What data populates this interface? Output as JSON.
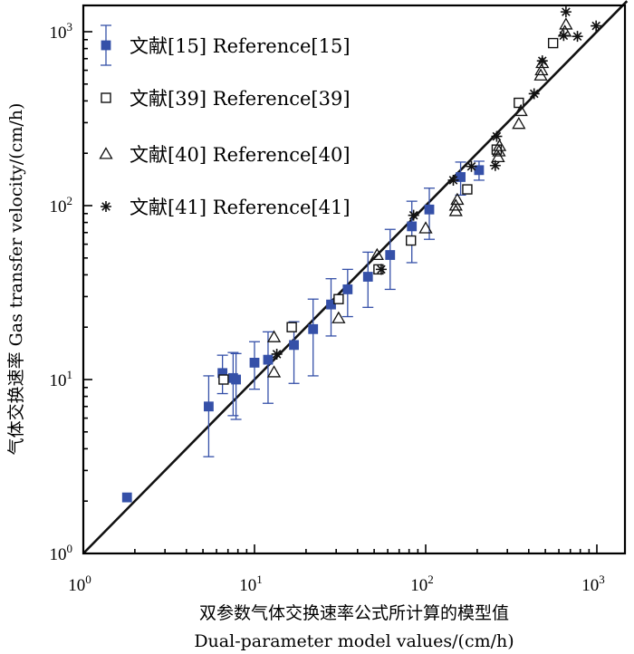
{
  "chart_data": {
    "type": "scatter",
    "title": "",
    "xscale": "log",
    "yscale": "log",
    "xlim": [
      1,
      1500
    ],
    "ylim": [
      1,
      1500
    ],
    "xlabel_cn": "双参数气体交换速率公式所计算的模型值",
    "xlabel_en": "Dual-parameter model values/(cm/h)",
    "ylabel": "气体交换速率 Gas transfer velocity/(cm/h)",
    "ticks": [
      {
        "value": 1,
        "base": "10",
        "exp": "0"
      },
      {
        "value": 10,
        "base": "10",
        "exp": "1"
      },
      {
        "value": 100,
        "base": "10",
        "exp": "2"
      },
      {
        "value": 1000,
        "base": "10",
        "exp": "3"
      }
    ],
    "reference_line": {
      "type": "y=x"
    },
    "legend_position": "top-left",
    "colors": {
      "blue": "#3550a8",
      "black": "#111111"
    },
    "series": [
      {
        "name": "文献[15] Reference[15]",
        "marker": "filled-square",
        "has_error_bars": true,
        "points": [
          {
            "x": 1.8,
            "y": 2.1
          },
          {
            "x": 5.4,
            "y": 7.0,
            "lo": 3.6,
            "hi": 10.5
          },
          {
            "x": 6.5,
            "y": 10.9,
            "lo": 8.3,
            "hi": 13.8
          },
          {
            "x": 7.5,
            "y": 10.2,
            "lo": 6.2,
            "hi": 14.3
          },
          {
            "x": 7.8,
            "y": 10.0,
            "lo": 5.9,
            "hi": 14.1
          },
          {
            "x": 10.0,
            "y": 12.5,
            "lo": 8.8,
            "hi": 16.5
          },
          {
            "x": 12.0,
            "y": 13.0,
            "lo": 7.3,
            "hi": 18.8
          },
          {
            "x": 17.0,
            "y": 15.8,
            "lo": 9.5,
            "hi": 21.5
          },
          {
            "x": 22.0,
            "y": 19.5,
            "lo": 10.5,
            "hi": 29.0
          },
          {
            "x": 28.0,
            "y": 27.0,
            "lo": 17.8,
            "hi": 38.0
          },
          {
            "x": 35.0,
            "y": 33.0,
            "lo": 23.0,
            "hi": 43.0
          },
          {
            "x": 46.0,
            "y": 39.0,
            "lo": 26.0,
            "hi": 54.0
          },
          {
            "x": 62.0,
            "y": 52.0,
            "lo": 33.0,
            "hi": 73.0
          },
          {
            "x": 83.0,
            "y": 76.0,
            "lo": 47.0,
            "hi": 106.0
          },
          {
            "x": 105.0,
            "y": 95.0,
            "lo": 64.0,
            "hi": 126.0
          },
          {
            "x": 160.0,
            "y": 146.0,
            "lo": 115.0,
            "hi": 178.0
          },
          {
            "x": 205.0,
            "y": 160.0,
            "lo": 140.0,
            "hi": 180.0
          }
        ]
      },
      {
        "name": "文献[39] Reference[39]",
        "marker": "open-square",
        "has_error_bars": false,
        "points": [
          {
            "x": 6.6,
            "y": 10.0
          },
          {
            "x": 16.5,
            "y": 20.0
          },
          {
            "x": 31.0,
            "y": 29.0
          },
          {
            "x": 53.0,
            "y": 43.0
          },
          {
            "x": 82.0,
            "y": 63.0
          },
          {
            "x": 175.0,
            "y": 124.0
          },
          {
            "x": 260.0,
            "y": 210.0
          },
          {
            "x": 350.0,
            "y": 390.0
          },
          {
            "x": 555.0,
            "y": 860.0
          }
        ]
      },
      {
        "name": "文献[40] Reference[40]",
        "marker": "open-triangle",
        "has_error_bars": false,
        "points": [
          {
            "x": 13.0,
            "y": 17.5
          },
          {
            "x": 13.0,
            "y": 11.0
          },
          {
            "x": 31.0,
            "y": 22.5
          },
          {
            "x": 52.0,
            "y": 52.0
          },
          {
            "x": 100.0,
            "y": 74.0
          },
          {
            "x": 150.0,
            "y": 93.0
          },
          {
            "x": 150.0,
            "y": 100.0
          },
          {
            "x": 153.0,
            "y": 108.0
          },
          {
            "x": 265.0,
            "y": 190.0
          },
          {
            "x": 268.0,
            "y": 205.0
          },
          {
            "x": 270.0,
            "y": 220.0
          },
          {
            "x": 350.0,
            "y": 295.0
          },
          {
            "x": 360.0,
            "y": 350.0
          },
          {
            "x": 470.0,
            "y": 560.0
          },
          {
            "x": 475.0,
            "y": 600.0
          },
          {
            "x": 480.0,
            "y": 660.0
          },
          {
            "x": 650.0,
            "y": 1000.0
          },
          {
            "x": 660.0,
            "y": 1100.0
          }
        ]
      },
      {
        "name": "文献[41] Reference[41]",
        "marker": "asterisk",
        "has_error_bars": false,
        "points": [
          {
            "x": 13.5,
            "y": 14.0
          },
          {
            "x": 55.0,
            "y": 43.0
          },
          {
            "x": 85.0,
            "y": 88.0
          },
          {
            "x": 145.0,
            "y": 140.0
          },
          {
            "x": 185.0,
            "y": 168.0
          },
          {
            "x": 255.0,
            "y": 170.0
          },
          {
            "x": 260.0,
            "y": 250.0
          },
          {
            "x": 430.0,
            "y": 440.0
          },
          {
            "x": 480.0,
            "y": 680.0
          },
          {
            "x": 640.0,
            "y": 950.0
          },
          {
            "x": 660.0,
            "y": 1300.0
          },
          {
            "x": 770.0,
            "y": 940.0
          },
          {
            "x": 990.0,
            "y": 1080.0
          }
        ]
      }
    ]
  }
}
